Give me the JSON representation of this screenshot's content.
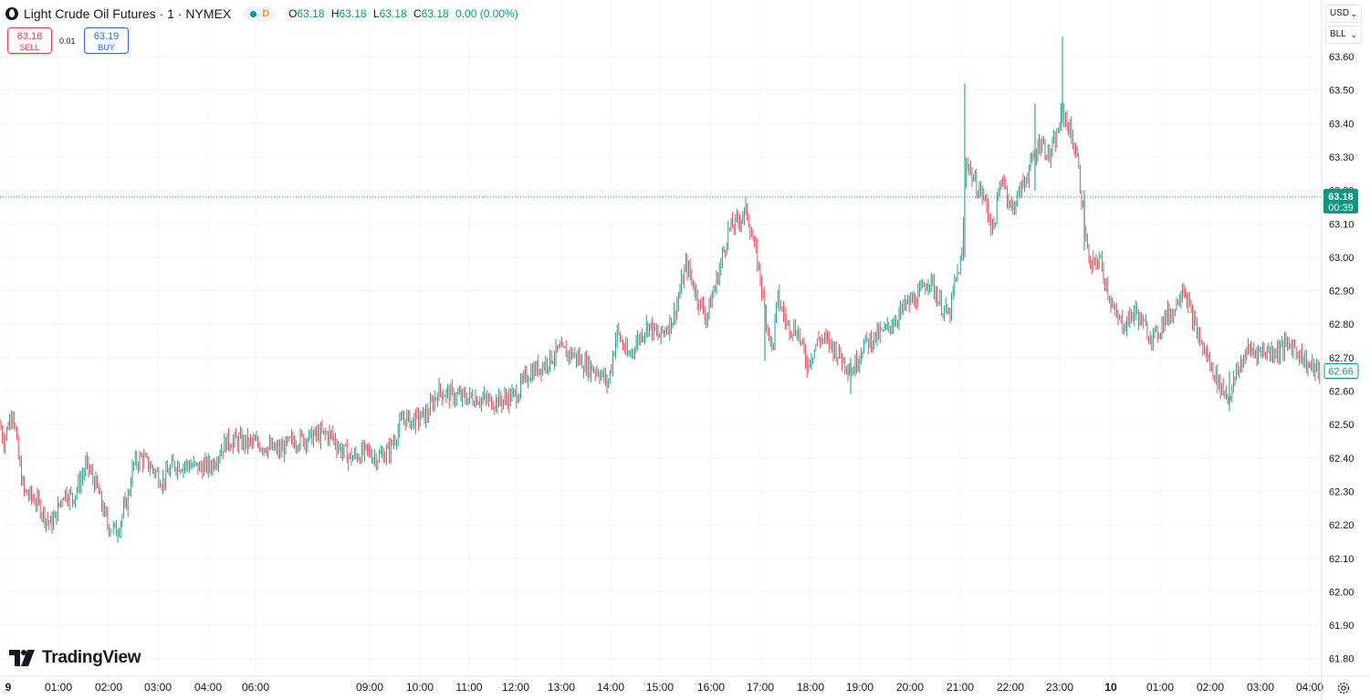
{
  "header": {
    "title": "Light Crude Oil Futures · 1 · NYMEX",
    "flag": "D",
    "ohlc": [
      {
        "k": "O",
        "v": "63.18"
      },
      {
        "k": "H",
        "v": "63.18"
      },
      {
        "k": "L",
        "v": "63.18"
      },
      {
        "k": "C",
        "v": "63.18"
      },
      {
        "k": "",
        "v": "0.00 (0.00%)"
      }
    ]
  },
  "trade": {
    "sell_price": "63.18",
    "sell_label": "SELL",
    "spread": "0.01",
    "buy_price": "63.19",
    "buy_label": "BUY"
  },
  "controls": {
    "currency": "USD",
    "unit": "BLL"
  },
  "brand": "TradingView",
  "colors": {
    "up": "#089981",
    "down": "#f23645",
    "grid": "#f0f3fa",
    "text": "#131722"
  },
  "chart_data": {
    "type": "candlestick",
    "title": "Light Crude Oil Futures · 1 · NYMEX",
    "x_ticks": [
      "9",
      "01:00",
      "02:00",
      "03:00",
      "04:00",
      "06:00",
      "09:00",
      "10:00",
      "11:00",
      "12:00",
      "13:00",
      "14:00",
      "15:00",
      "16:00",
      "17:00",
      "18:00",
      "19:00",
      "20:00",
      "21:00",
      "22:00",
      "23:00",
      "10",
      "01:00",
      "02:00",
      "03:00",
      "04:00"
    ],
    "y_ticks": [
      61.8,
      61.9,
      62.0,
      62.1,
      62.2,
      62.3,
      62.4,
      62.5,
      62.6,
      62.7,
      62.8,
      62.9,
      63.0,
      63.1,
      63.2,
      63.3,
      63.4,
      63.5,
      63.6
    ],
    "ylim": [
      61.75,
      63.69
    ],
    "last_price": {
      "value": "63.18",
      "countdown": "00:39"
    },
    "marker_price": "62.66",
    "series": [
      {
        "values": [
          [
            0,
            62.5
          ],
          [
            4,
            62.45
          ],
          [
            14,
            62.55
          ],
          [
            20,
            62.4
          ],
          [
            26,
            62.3
          ],
          [
            40,
            62.27
          ],
          [
            55,
            62.2
          ],
          [
            60,
            62.22
          ],
          [
            70,
            62.3
          ],
          [
            80,
            62.28
          ],
          [
            95,
            62.38
          ],
          [
            105,
            62.32
          ],
          [
            118,
            62.2
          ],
          [
            128,
            62.18
          ],
          [
            140,
            62.28
          ],
          [
            146,
            62.38
          ],
          [
            155,
            62.4
          ],
          [
            170,
            62.36
          ],
          [
            178,
            62.33
          ],
          [
            190,
            62.38
          ],
          [
            205,
            62.38
          ],
          [
            220,
            62.37
          ],
          [
            232,
            62.38
          ],
          [
            248,
            62.45
          ],
          [
            260,
            62.45
          ],
          [
            285,
            62.44
          ],
          [
            306,
            62.42
          ],
          [
            320,
            62.45
          ],
          [
            338,
            62.46
          ],
          [
            350,
            62.47
          ],
          [
            362,
            62.47
          ],
          [
            372,
            62.43
          ],
          [
            384,
            62.4
          ],
          [
            402,
            62.42
          ],
          [
            412,
            62.4
          ],
          [
            426,
            62.42
          ],
          [
            442,
            62.52
          ],
          [
            452,
            62.51
          ],
          [
            468,
            62.53
          ],
          [
            480,
            62.6
          ],
          [
            492,
            62.59
          ],
          [
            508,
            62.58
          ],
          [
            522,
            62.58
          ],
          [
            535,
            62.57
          ],
          [
            548,
            62.57
          ],
          [
            566,
            62.59
          ],
          [
            578,
            62.65
          ],
          [
            596,
            62.68
          ],
          [
            612,
            62.72
          ],
          [
            628,
            62.71
          ],
          [
            640,
            62.68
          ],
          [
            656,
            62.66
          ],
          [
            666,
            62.62
          ],
          [
            676,
            62.78
          ],
          [
            688,
            62.7
          ],
          [
            700,
            62.76
          ],
          [
            710,
            62.8
          ],
          [
            722,
            62.76
          ],
          [
            738,
            62.82
          ],
          [
            752,
            62.98
          ],
          [
            764,
            62.88
          ],
          [
            774,
            62.82
          ],
          [
            786,
            62.94
          ],
          [
            798,
            63.08
          ],
          [
            806,
            63.1
          ],
          [
            818,
            63.14
          ],
          [
            824,
            63.06
          ],
          [
            832,
            62.96
          ],
          [
            838,
            62.84
          ],
          [
            846,
            62.72
          ],
          [
            852,
            62.88
          ],
          [
            862,
            62.8
          ],
          [
            874,
            62.78
          ],
          [
            884,
            62.68
          ],
          [
            898,
            62.76
          ],
          [
            910,
            62.74
          ],
          [
            922,
            62.7
          ],
          [
            934,
            62.66
          ],
          [
            946,
            62.74
          ],
          [
            958,
            62.76
          ],
          [
            970,
            62.78
          ],
          [
            982,
            62.82
          ],
          [
            994,
            62.86
          ],
          [
            1006,
            62.88
          ],
          [
            1018,
            62.94
          ],
          [
            1030,
            62.86
          ],
          [
            1040,
            62.82
          ],
          [
            1046,
            62.92
          ],
          [
            1054,
            63.0
          ],
          [
            1058,
            63.3
          ],
          [
            1068,
            63.22
          ],
          [
            1078,
            63.18
          ],
          [
            1088,
            63.08
          ],
          [
            1098,
            63.25
          ],
          [
            1108,
            63.14
          ],
          [
            1118,
            63.2
          ],
          [
            1130,
            63.28
          ],
          [
            1140,
            63.35
          ],
          [
            1150,
            63.3
          ],
          [
            1158,
            63.36
          ],
          [
            1164,
            63.44
          ],
          [
            1172,
            63.38
          ],
          [
            1180,
            63.3
          ],
          [
            1188,
            63.1
          ],
          [
            1194,
            62.96
          ],
          [
            1204,
            63.0
          ],
          [
            1212,
            62.92
          ],
          [
            1222,
            62.82
          ],
          [
            1232,
            62.8
          ],
          [
            1244,
            62.84
          ],
          [
            1256,
            62.78
          ],
          [
            1266,
            62.76
          ],
          [
            1276,
            62.82
          ],
          [
            1286,
            62.84
          ],
          [
            1296,
            62.92
          ],
          [
            1306,
            62.82
          ],
          [
            1316,
            62.74
          ],
          [
            1326,
            62.68
          ],
          [
            1336,
            62.62
          ],
          [
            1346,
            62.58
          ],
          [
            1356,
            62.66
          ],
          [
            1366,
            62.72
          ],
          [
            1380,
            62.72
          ],
          [
            1398,
            62.72
          ],
          [
            1412,
            62.74
          ],
          [
            1422,
            62.72
          ],
          [
            1432,
            62.68
          ],
          [
            1444,
            62.66
          ],
          [
            1447,
            62.66
          ]
        ]
      }
    ]
  }
}
